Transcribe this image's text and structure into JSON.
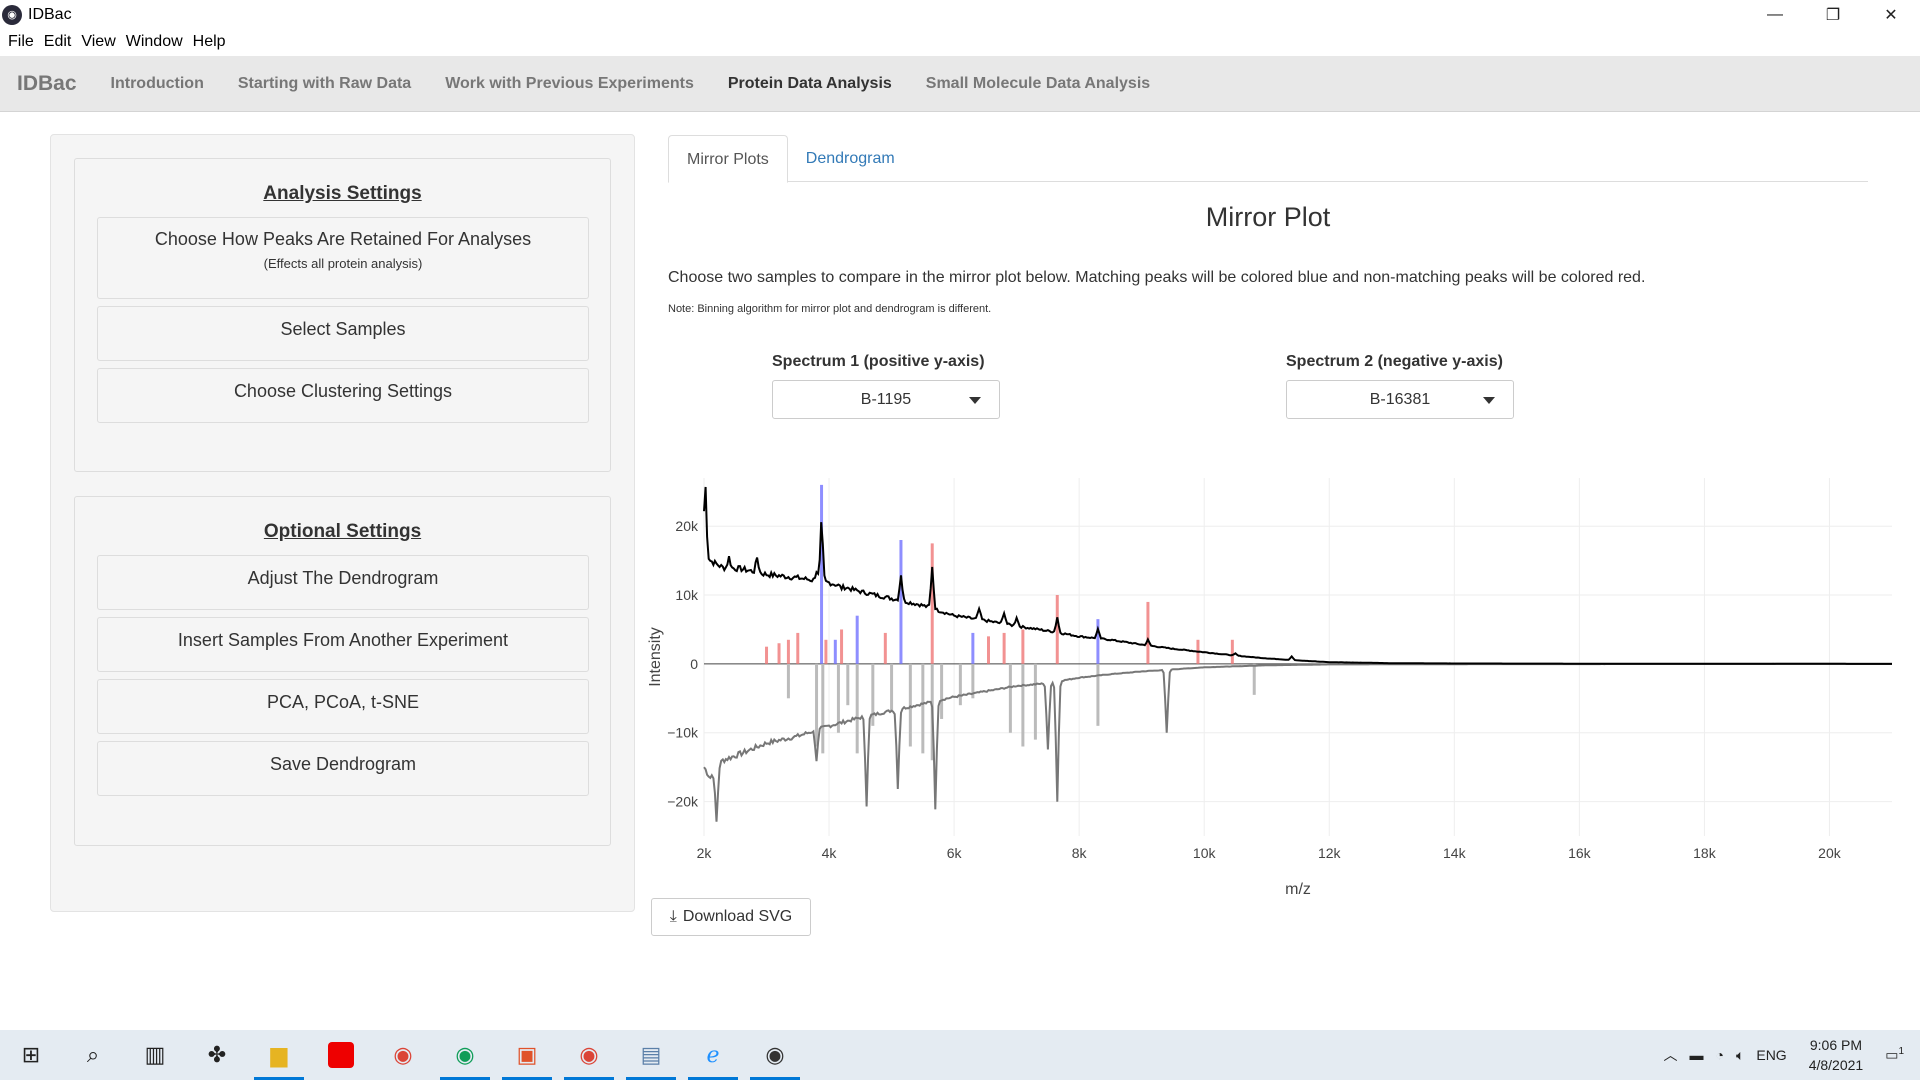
{
  "window": {
    "title": "IDBac",
    "controls": [
      "minimize-icon",
      "restore-icon",
      "close-icon"
    ]
  },
  "menu": [
    "File",
    "Edit",
    "View",
    "Window",
    "Help"
  ],
  "nav": {
    "brand": "IDBac",
    "items": [
      "Introduction",
      "Starting with Raw Data",
      "Work with Previous Experiments",
      "Protein Data Analysis",
      "Small Molecule Data Analysis"
    ],
    "active": "Protein Data Analysis"
  },
  "left": {
    "analysis_title": "Analysis Settings",
    "analysis_buttons": [
      {
        "label": "Choose How Peaks Are Retained For Analyses",
        "sub": "(Effects all protein analysis)"
      },
      {
        "label": "Select Samples"
      },
      {
        "label": "Choose Clustering Settings"
      }
    ],
    "optional_title": "Optional Settings",
    "optional_buttons": [
      "Adjust The Dendrogram",
      "Insert Samples From Another Experiment",
      "PCA, PCoA, t-SNE",
      "Save Dendrogram"
    ]
  },
  "tabs": [
    "Mirror Plots",
    "Dendrogram"
  ],
  "main": {
    "title": "Mirror Plot",
    "description": "Choose two samples to compare in the mirror plot below. Matching peaks will be colored blue and non-matching peaks will be colored red.",
    "note": "Note: Binning algorithm for mirror plot and dendrogram is different.",
    "spectrum1_label": "Spectrum 1 (positive y-axis)",
    "spectrum1_value": "B-1195",
    "spectrum2_label": "Spectrum 2 (negative y-axis)",
    "spectrum2_value": "B-16381",
    "download_label": "Download SVG"
  },
  "chart_data": {
    "type": "line",
    "xlabel": "m/z",
    "ylabel": "Intensity",
    "xlim": [
      2000,
      21000
    ],
    "ylim": [
      -25000,
      27000
    ],
    "xticks": [
      2000,
      4000,
      6000,
      8000,
      10000,
      12000,
      14000,
      16000,
      18000,
      20000
    ],
    "xtick_labels": [
      "2k",
      "4k",
      "6k",
      "8k",
      "10k",
      "12k",
      "14k",
      "16k",
      "18k",
      "20k"
    ],
    "yticks": [
      -20000,
      -10000,
      0,
      10000,
      20000
    ],
    "ytick_labels": [
      "−20k",
      "−10k",
      "0",
      "10k",
      "20k"
    ],
    "grid": true,
    "colors": {
      "matching": "#7b7bff",
      "nonmatching": "#f08080",
      "spectrum1": "#000000",
      "spectrum2": "#777777",
      "peaks2": "#bbbbbb"
    },
    "spectrum1_baseline": [
      [
        2000,
        16000
      ],
      [
        2100,
        15000
      ],
      [
        2300,
        14000
      ],
      [
        2600,
        13800
      ],
      [
        3000,
        13000
      ],
      [
        3500,
        12500
      ],
      [
        4000,
        11800
      ],
      [
        4500,
        10500
      ],
      [
        5000,
        9500
      ],
      [
        5500,
        8500
      ],
      [
        6000,
        7000
      ],
      [
        6500,
        6300
      ],
      [
        7000,
        5500
      ],
      [
        7500,
        4800
      ],
      [
        8000,
        4000
      ],
      [
        8500,
        3500
      ],
      [
        9000,
        2800
      ],
      [
        9500,
        2200
      ],
      [
        10000,
        1700
      ],
      [
        10500,
        1200
      ],
      [
        11000,
        800
      ],
      [
        11500,
        500
      ],
      [
        12000,
        250
      ],
      [
        13000,
        100
      ],
      [
        14000,
        60
      ],
      [
        16000,
        30
      ],
      [
        18000,
        20
      ],
      [
        21000,
        0
      ]
    ],
    "spectrum1_peaks": [
      [
        2020,
        26000
      ],
      [
        2400,
        15500
      ],
      [
        2850,
        15500
      ],
      [
        3800,
        13500
      ],
      [
        3880,
        20500
      ],
      [
        4200,
        11000
      ],
      [
        5150,
        13000
      ],
      [
        5650,
        14200
      ],
      [
        6400,
        8000
      ],
      [
        6800,
        7500
      ],
      [
        7000,
        6800
      ],
      [
        7650,
        6800
      ],
      [
        8300,
        5000
      ],
      [
        9100,
        3500
      ],
      [
        10500,
        1500
      ],
      [
        11400,
        1100
      ]
    ],
    "spectrum2_baseline": [
      [
        2000,
        -15000
      ],
      [
        2100,
        -16500
      ],
      [
        2300,
        -14000
      ],
      [
        2600,
        -13000
      ],
      [
        3000,
        -11500
      ],
      [
        3500,
        -10500
      ],
      [
        4000,
        -9000
      ],
      [
        4500,
        -7800
      ],
      [
        5000,
        -6800
      ],
      [
        5500,
        -5800
      ],
      [
        6000,
        -4800
      ],
      [
        6500,
        -4000
      ],
      [
        7000,
        -3200
      ],
      [
        7500,
        -2800
      ],
      [
        8000,
        -2000
      ],
      [
        8500,
        -1500
      ],
      [
        9000,
        -1100
      ],
      [
        9500,
        -800
      ],
      [
        10000,
        -500
      ],
      [
        11000,
        -200
      ],
      [
        12000,
        -80
      ],
      [
        14000,
        -40
      ],
      [
        17000,
        -20
      ],
      [
        21000,
        0
      ]
    ],
    "spectrum2_peaks": [
      [
        2200,
        -23000
      ],
      [
        3800,
        -14000
      ],
      [
        4600,
        -20500
      ],
      [
        5100,
        -18000
      ],
      [
        5700,
        -21000
      ],
      [
        7500,
        -12500
      ],
      [
        7650,
        -20000
      ],
      [
        9400,
        -10000
      ]
    ],
    "matching_peaks": [
      [
        3880,
        26000
      ],
      [
        4450,
        7000
      ],
      [
        5150,
        18000
      ],
      [
        6300,
        4500
      ],
      [
        8300,
        6500
      ],
      [
        4100,
        3500
      ]
    ],
    "nonmatching_peaks": [
      [
        3200,
        3000
      ],
      [
        3350,
        3500
      ],
      [
        3500,
        4500
      ],
      [
        3950,
        3500
      ],
      [
        4200,
        5000
      ],
      [
        4900,
        4500
      ],
      [
        5650,
        17500
      ],
      [
        6550,
        4000
      ],
      [
        6800,
        4500
      ],
      [
        7100,
        5000
      ],
      [
        7650,
        10000
      ],
      [
        9100,
        9000
      ],
      [
        9900,
        3500
      ],
      [
        10450,
        3500
      ],
      [
        3000,
        2500
      ]
    ],
    "negative_bars": [
      [
        3350,
        -5000
      ],
      [
        3800,
        -12000
      ],
      [
        3900,
        -13000
      ],
      [
        4150,
        -10000
      ],
      [
        4300,
        -6000
      ],
      [
        4450,
        -13000
      ],
      [
        4700,
        -9000
      ],
      [
        5000,
        -7000
      ],
      [
        5300,
        -12000
      ],
      [
        5500,
        -13000
      ],
      [
        5650,
        -14000
      ],
      [
        5800,
        -8000
      ],
      [
        6100,
        -6000
      ],
      [
        6300,
        -5000
      ],
      [
        6900,
        -10000
      ],
      [
        7100,
        -12000
      ],
      [
        7300,
        -11000
      ],
      [
        8300,
        -9000
      ],
      [
        10800,
        -4500
      ]
    ]
  },
  "taskbar": {
    "icons": [
      "windows-start-icon",
      "search-icon",
      "task-view-icon",
      "app-pinwheel-icon",
      "file-explorer-icon",
      "dictionary-app-icon",
      "chrome-icon",
      "chrome-profile-icon",
      "pdf-editor-icon",
      "chrome-alt-icon",
      "image-viewer-icon",
      "edge-icon",
      "idbac-icon"
    ],
    "tray_lang": "ENG",
    "time": "9:06 PM",
    "date": "4/8/2021",
    "notification_count": "1"
  }
}
